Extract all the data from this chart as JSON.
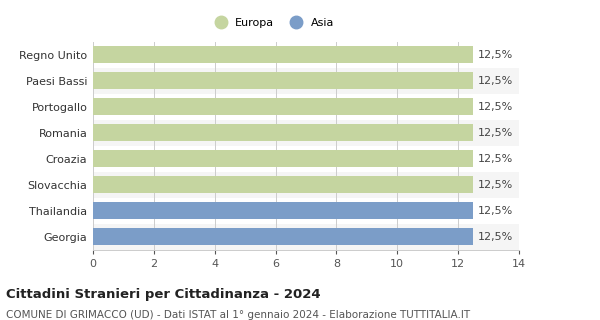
{
  "categories": [
    "Georgia",
    "Thailandia",
    "Slovacchia",
    "Croazia",
    "Romania",
    "Portogallo",
    "Paesi Bassi",
    "Regno Unito"
  ],
  "values": [
    12.5,
    12.5,
    12.5,
    12.5,
    12.5,
    12.5,
    12.5,
    12.5
  ],
  "bar_colors": [
    "#7b9dc8",
    "#7b9dc8",
    "#c5d5a0",
    "#c5d5a0",
    "#c5d5a0",
    "#c5d5a0",
    "#c5d5a0",
    "#c5d5a0"
  ],
  "legend_labels": [
    "Europa",
    "Asia"
  ],
  "legend_colors": [
    "#c5d5a0",
    "#7b9dc8"
  ],
  "bar_labels": [
    "12,5%",
    "12,5%",
    "12,5%",
    "12,5%",
    "12,5%",
    "12,5%",
    "12,5%",
    "12,5%"
  ],
  "xlim": [
    0,
    14
  ],
  "xticks": [
    0,
    2,
    4,
    6,
    8,
    10,
    12,
    14
  ],
  "title_bold": "Cittadini Stranieri per Cittadinanza - 2024",
  "subtitle": "COMUNE DI GRIMACCO (UD) - Dati ISTAT al 1° gennaio 2024 - Elaborazione TUTTITALIA.IT",
  "bg_color": "#ffffff",
  "grid_color": "#cccccc",
  "bar_height": 0.65,
  "row_bg_even": "#f5f5f5",
  "row_bg_odd": "#ffffff",
  "label_fontsize": 8,
  "tick_fontsize": 8,
  "title_fontsize": 9.5,
  "subtitle_fontsize": 7.5
}
